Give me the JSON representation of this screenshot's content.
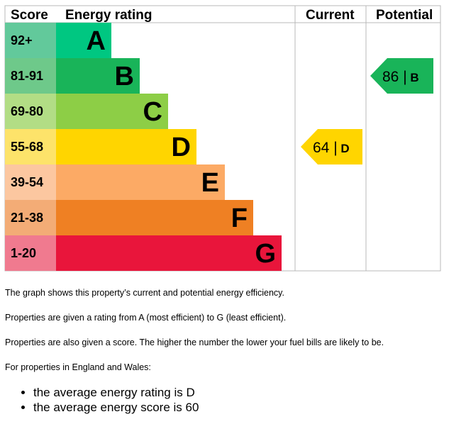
{
  "chart_data": {
    "type": "table",
    "headers": {
      "score": "Score",
      "rating": "Energy rating",
      "current": "Current",
      "potential": "Potential"
    },
    "bands": [
      {
        "score": "92+",
        "letter": "A",
        "color": "#00c781",
        "score_color": "#62c99b"
      },
      {
        "score": "81-91",
        "letter": "B",
        "color": "#19b459",
        "score_color": "#6ec98a"
      },
      {
        "score": "69-80",
        "letter": "C",
        "color": "#8dce46",
        "score_color": "#b2dd85"
      },
      {
        "score": "55-68",
        "letter": "D",
        "color": "#ffd500",
        "score_color": "#fde36a"
      },
      {
        "score": "39-54",
        "letter": "E",
        "color": "#fcaa65",
        "score_color": "#fcc7a0"
      },
      {
        "score": "21-38",
        "letter": "F",
        "color": "#ef8023",
        "score_color": "#f3ac76"
      },
      {
        "score": "1-20",
        "letter": "G",
        "color": "#e9153b",
        "score_color": "#f07a8f"
      }
    ],
    "current": {
      "score": 64,
      "letter": "D",
      "label": "64 | D"
    },
    "potential": {
      "score": 86,
      "letter": "B",
      "label": "86 | B"
    }
  },
  "notes": {
    "p1": "The graph shows this property’s current and potential energy efficiency.",
    "p2": "Properties are given a rating from A (most efficient) to G (least efficient).",
    "p3": "Properties are also given a score. The higher the number the lower your fuel bills are likely to be.",
    "p4": "For properties in England and Wales:",
    "bullets": [
      "the average energy rating is D",
      "the average energy score is 60"
    ]
  }
}
